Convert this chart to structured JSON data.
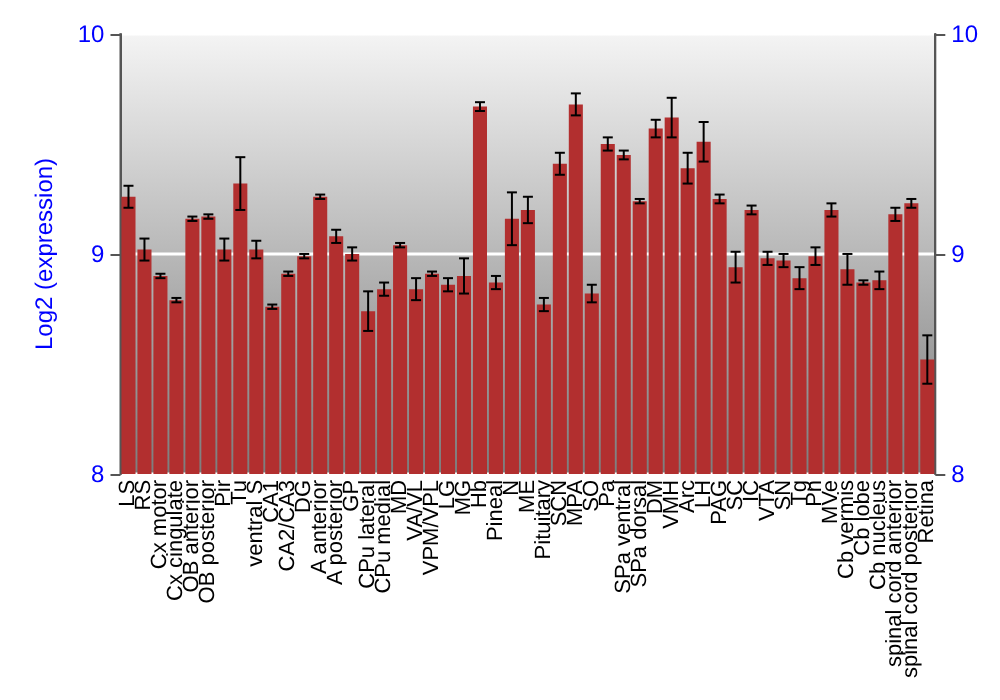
{
  "chart_data": {
    "type": "bar",
    "ylabel": "Log2 (expression)",
    "categories": [
      "LS",
      "RS",
      "Cx motor",
      "Cx cingulate",
      "OB anterior",
      "OB posterior",
      "Pir",
      "Tu",
      "ventral S",
      "CA1",
      "CA2/CA3",
      "DG",
      "A anterior",
      "A posterior",
      "GP",
      "CPu lateral",
      "CPu medial",
      "MD",
      "VA/VL",
      "VPM/VPL",
      "LG",
      "MG",
      "Hb",
      "Pineal",
      "N",
      "ME",
      "Pituitary",
      "SCN",
      "MPA",
      "SO",
      "Pa",
      "SPa ventral",
      "SPa dorsal",
      "DM",
      "VMH",
      "Arc",
      "LH",
      "PAG",
      "SC",
      "IC",
      "VTA",
      "SN",
      "Tg",
      "Pn",
      "MVe",
      "Cb vermis",
      "Cb lobe",
      "Cb nucleus",
      "spinal cord anterior",
      "spinal cord posterior",
      "Retina"
    ],
    "series": [
      {
        "color": "#b22f2f",
        "values": [
          9.26,
          9.02,
          8.9,
          8.79,
          9.16,
          9.17,
          9.02,
          9.32,
          9.02,
          8.76,
          8.91,
          8.99,
          9.26,
          9.08,
          9.0,
          8.74,
          8.84,
          9.04,
          8.84,
          8.91,
          8.86,
          8.9,
          9.67,
          8.87,
          9.16,
          9.2,
          8.77,
          9.41,
          9.68,
          8.82,
          9.5,
          9.45,
          9.24,
          9.57,
          9.62,
          9.39,
          9.51,
          9.25,
          8.94,
          9.2,
          8.98,
          8.97,
          8.89,
          8.99,
          9.2,
          8.93,
          8.87,
          8.88,
          9.18,
          9.23,
          8.52
        ],
        "errors": [
          0.05,
          0.05,
          0.01,
          0.01,
          0.01,
          0.01,
          0.05,
          0.12,
          0.04,
          0.01,
          0.01,
          0.01,
          0.01,
          0.03,
          0.03,
          0.09,
          0.03,
          0.01,
          0.05,
          0.01,
          0.03,
          0.08,
          0.02,
          0.03,
          0.12,
          0.06,
          0.03,
          0.05,
          0.05,
          0.04,
          0.03,
          0.02,
          0.01,
          0.04,
          0.09,
          0.07,
          0.09,
          0.02,
          0.07,
          0.02,
          0.03,
          0.03,
          0.05,
          0.04,
          0.03,
          0.07,
          0.01,
          0.04,
          0.03,
          0.02,
          0.11
        ]
      }
    ],
    "ylim": [
      8,
      10
    ],
    "yticks": [
      8,
      9,
      10
    ],
    "y2lim": [
      8,
      10
    ],
    "y2ticks": [
      8,
      9,
      10
    ],
    "grid": "y"
  }
}
